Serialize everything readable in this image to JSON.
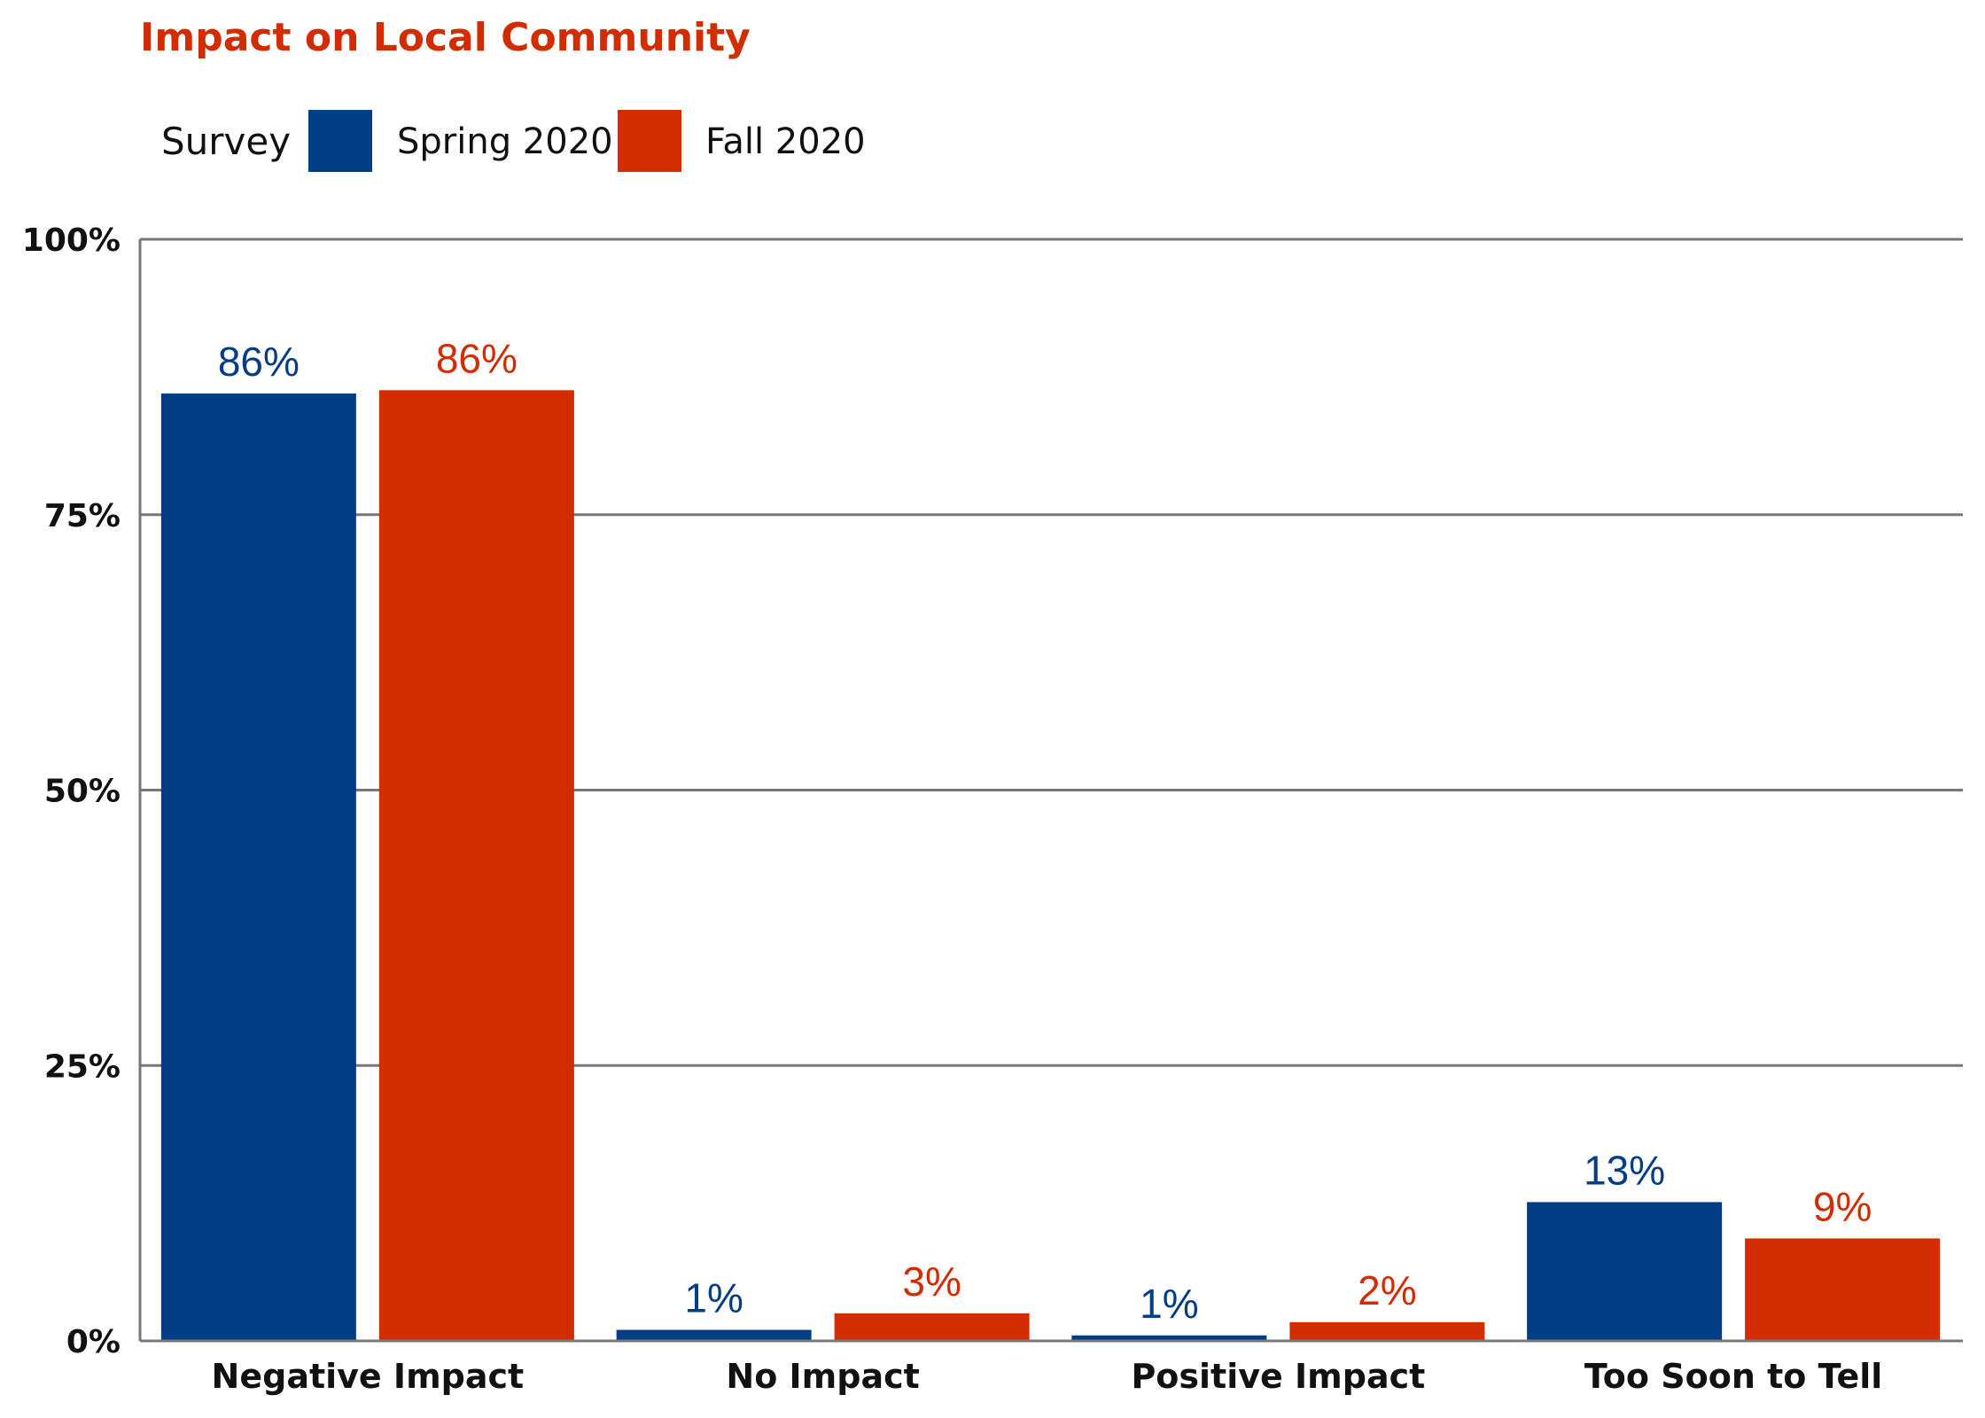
{
  "colors": {
    "spring": "#033e85",
    "fall": "#d12d00",
    "title": "#d12d00",
    "grid": "#777777"
  },
  "chart_data": {
    "type": "bar",
    "title": "Impact on Local Community",
    "legend_title": "Survey",
    "legend_position": "top-left",
    "categories": [
      "Negative Impact",
      "No Impact",
      "Positive Impact",
      "Too Soon to Tell"
    ],
    "series": [
      {
        "name": "Spring 2020",
        "values": [
          86,
          1,
          0.5,
          12.6
        ],
        "labels": [
          "86%",
          "1%",
          "1%",
          "13%"
        ]
      },
      {
        "name": "Fall 2020",
        "values": [
          86.3,
          2.5,
          1.7,
          9.3
        ],
        "labels": [
          "86%",
          "3%",
          "2%",
          "9%"
        ]
      }
    ],
    "yticks": [
      0,
      25,
      50,
      75,
      100
    ],
    "ytick_labels": [
      "0%",
      "25%",
      "50%",
      "75%",
      "100%"
    ],
    "ylim": [
      0,
      100
    ],
    "grid": true
  }
}
